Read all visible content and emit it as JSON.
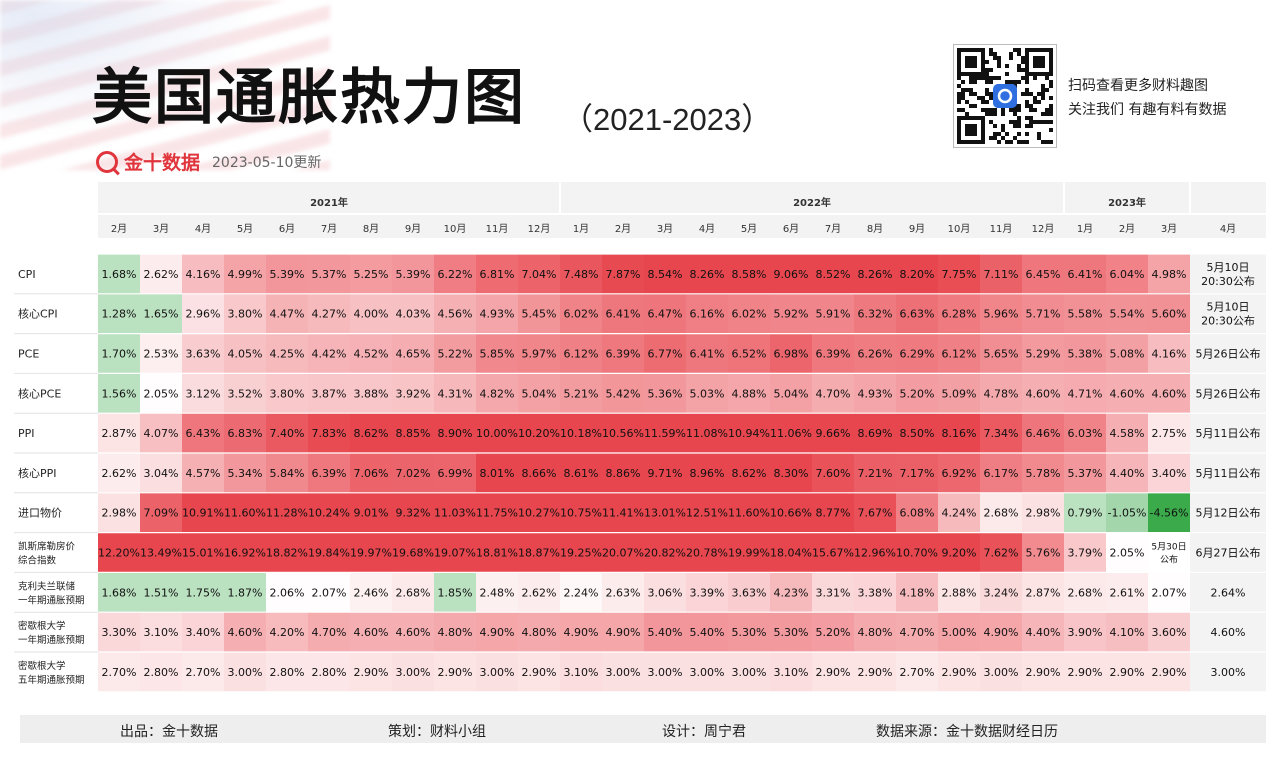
{
  "title": "美国通胀热力图",
  "subtitle": "（2021-2023）",
  "brand": {
    "name": "金十数据",
    "update": "2023-05-10更新",
    "logo": "jin10-q-logo-icon"
  },
  "qr": {
    "line1": "扫码查看更多财料趣图",
    "line2": "关注我们 有趣有料有数据",
    "icon": "qr-code-icon"
  },
  "footer": {
    "producer": "出品：金十数据",
    "planner": "策划：财料小组",
    "designer": "设计：周宁君",
    "source": "数据来源：金十数据财经日历"
  },
  "colors": {
    "positive": "#e8464e",
    "negative": "#2e9a3c",
    "accent": "#e0353d"
  },
  "chart_data": {
    "type": "heatmap",
    "title": "美国通胀热力图",
    "year_groups": [
      {
        "label": "2021年",
        "span": 11
      },
      {
        "label": "2022年",
        "span": 12
      },
      {
        "label": "2023年",
        "span": 3
      },
      {
        "label": "",
        "span": 1
      }
    ],
    "columns": [
      "2月",
      "3月",
      "4月",
      "5月",
      "6月",
      "7月",
      "8月",
      "9月",
      "10月",
      "11月",
      "12月",
      "1月",
      "2月",
      "3月",
      "4月",
      "5月",
      "6月",
      "7月",
      "8月",
      "9月",
      "10月",
      "11月",
      "12月",
      "1月",
      "2月",
      "3月",
      "4月"
    ],
    "rows": [
      {
        "label": [
          "CPI"
        ],
        "values": [
          1.68,
          2.62,
          4.16,
          4.99,
          5.39,
          5.37,
          5.25,
          5.39,
          6.22,
          6.81,
          7.04,
          7.48,
          7.87,
          8.54,
          8.26,
          8.58,
          9.06,
          8.52,
          8.26,
          8.2,
          7.75,
          7.11,
          6.45,
          6.41,
          6.04,
          4.98
        ],
        "cells": [
          "1.68%",
          "2.62%",
          "4.16%",
          "4.99%",
          "5.39%",
          "5.37%",
          "5.25%",
          "5.39%",
          "6.22%",
          "6.81%",
          "7.04%",
          "7.48%",
          "7.87%",
          "8.54%",
          "8.26%",
          "8.58%",
          "9.06%",
          "8.52%",
          "8.26%",
          "8.20%",
          "7.75%",
          "7.11%",
          "6.45%",
          "6.41%",
          "6.04%",
          "4.98%"
        ],
        "release": [
          "5月10日",
          "20:30公布"
        ]
      },
      {
        "label": [
          "核心CPI"
        ],
        "values": [
          1.28,
          1.65,
          2.96,
          3.8,
          4.47,
          4.27,
          4.0,
          4.03,
          4.56,
          4.93,
          5.45,
          6.02,
          6.41,
          6.47,
          6.16,
          6.02,
          5.92,
          5.91,
          6.32,
          6.63,
          6.28,
          5.96,
          5.71,
          5.58,
          5.54,
          5.6
        ],
        "cells": [
          "1.28%",
          "1.65%",
          "2.96%",
          "3.80%",
          "4.47%",
          "4.27%",
          "4.00%",
          "4.03%",
          "4.56%",
          "4.93%",
          "5.45%",
          "6.02%",
          "6.41%",
          "6.47%",
          "6.16%",
          "6.02%",
          "5.92%",
          "5.91%",
          "6.32%",
          "6.63%",
          "6.28%",
          "5.96%",
          "5.71%",
          "5.58%",
          "5.54%",
          "5.60%"
        ],
        "release": [
          "5月10日",
          "20:30公布"
        ]
      },
      {
        "label": [
          "PCE"
        ],
        "values": [
          1.7,
          2.53,
          3.63,
          4.05,
          4.25,
          4.42,
          4.52,
          4.65,
          5.22,
          5.85,
          5.97,
          6.12,
          6.39,
          6.77,
          6.41,
          6.52,
          6.98,
          6.39,
          6.26,
          6.29,
          6.12,
          5.65,
          5.29,
          5.38,
          5.08,
          4.16
        ],
        "cells": [
          "1.70%",
          "2.53%",
          "3.63%",
          "4.05%",
          "4.25%",
          "4.42%",
          "4.52%",
          "4.65%",
          "5.22%",
          "5.85%",
          "5.97%",
          "6.12%",
          "6.39%",
          "6.77%",
          "6.41%",
          "6.52%",
          "6.98%",
          "6.39%",
          "6.26%",
          "6.29%",
          "6.12%",
          "5.65%",
          "5.29%",
          "5.38%",
          "5.08%",
          "4.16%"
        ],
        "release": [
          "5月26日公布"
        ]
      },
      {
        "label": [
          "核心PCE"
        ],
        "values": [
          1.56,
          2.05,
          3.12,
          3.52,
          3.8,
          3.87,
          3.88,
          3.92,
          4.31,
          4.82,
          5.04,
          5.21,
          5.42,
          5.36,
          5.03,
          4.88,
          5.04,
          4.7,
          4.93,
          5.2,
          5.09,
          4.78,
          4.6,
          4.71,
          4.6,
          4.6
        ],
        "cells": [
          "1.56%",
          "2.05%",
          "3.12%",
          "3.52%",
          "3.80%",
          "3.87%",
          "3.88%",
          "3.92%",
          "4.31%",
          "4.82%",
          "5.04%",
          "5.21%",
          "5.42%",
          "5.36%",
          "5.03%",
          "4.88%",
          "5.04%",
          "4.70%",
          "4.93%",
          "5.20%",
          "5.09%",
          "4.78%",
          "4.60%",
          "4.71%",
          "4.60%",
          "4.60%"
        ],
        "release": [
          "5月26日公布"
        ]
      },
      {
        "label": [
          "PPI"
        ],
        "values": [
          2.87,
          4.07,
          6.43,
          6.83,
          7.4,
          7.83,
          8.62,
          8.85,
          8.9,
          10.0,
          10.2,
          10.18,
          10.56,
          11.59,
          11.08,
          10.94,
          11.06,
          9.66,
          8.69,
          8.5,
          8.16,
          7.34,
          6.46,
          6.03,
          4.58,
          2.75
        ],
        "cells": [
          "2.87%",
          "4.07%",
          "6.43%",
          "6.83%",
          "7.40%",
          "7.83%",
          "8.62%",
          "8.85%",
          "8.90%",
          "10.00%",
          "10.20%",
          "10.18%",
          "10.56%",
          "11.59%",
          "11.08%",
          "10.94%",
          "11.06%",
          "9.66%",
          "8.69%",
          "8.50%",
          "8.16%",
          "7.34%",
          "6.46%",
          "6.03%",
          "4.58%",
          "2.75%"
        ],
        "release": [
          "5月11日公布"
        ]
      },
      {
        "label": [
          "核心PPI"
        ],
        "values": [
          2.62,
          3.04,
          4.57,
          5.34,
          5.84,
          6.39,
          7.06,
          7.02,
          6.99,
          8.01,
          8.66,
          8.61,
          8.86,
          9.71,
          8.96,
          8.62,
          8.3,
          7.6,
          7.21,
          7.17,
          6.92,
          6.17,
          5.78,
          5.37,
          4.4,
          3.4
        ],
        "cells": [
          "2.62%",
          "3.04%",
          "4.57%",
          "5.34%",
          "5.84%",
          "6.39%",
          "7.06%",
          "7.02%",
          "6.99%",
          "8.01%",
          "8.66%",
          "8.61%",
          "8.86%",
          "9.71%",
          "8.96%",
          "8.62%",
          "8.30%",
          "7.60%",
          "7.21%",
          "7.17%",
          "6.92%",
          "6.17%",
          "5.78%",
          "5.37%",
          "4.40%",
          "3.40%"
        ],
        "release": [
          "5月11日公布"
        ]
      },
      {
        "label": [
          "进口物价"
        ],
        "values": [
          2.98,
          7.09,
          10.91,
          11.6,
          11.28,
          10.24,
          9.01,
          9.32,
          11.03,
          11.75,
          10.27,
          10.75,
          11.41,
          13.01,
          12.51,
          11.6,
          10.66,
          8.77,
          7.67,
          6.08,
          4.24,
          2.68,
          2.98,
          0.79,
          -1.05,
          -4.56
        ],
        "cells": [
          "2.98%",
          "7.09%",
          "10.91%",
          "11.60%",
          "11.28%",
          "10.24%",
          "9.01%",
          "9.32%",
          "11.03%",
          "11.75%",
          "10.27%",
          "10.75%",
          "11.41%",
          "13.01%",
          "12.51%",
          "11.60%",
          "10.66%",
          "8.77%",
          "7.67%",
          "6.08%",
          "4.24%",
          "2.68%",
          "2.98%",
          "0.79%",
          "-1.05%",
          "-4.56%"
        ],
        "release": [
          "5月12日公布"
        ]
      },
      {
        "label": [
          "凯斯席勒房价",
          "综合指数"
        ],
        "values": [
          12.2,
          13.49,
          15.01,
          16.92,
          18.82,
          19.84,
          19.97,
          19.68,
          19.07,
          18.81,
          18.87,
          19.25,
          20.07,
          20.82,
          20.78,
          19.99,
          18.04,
          15.67,
          12.96,
          10.7,
          9.2,
          7.62,
          5.76,
          3.79,
          2.05,
          null
        ],
        "cells": [
          "12.20%",
          "13.49%",
          "15.01%",
          "16.92%",
          "18.82%",
          "19.84%",
          "19.97%",
          "19.68%",
          "19.07%",
          "18.81%",
          "18.87%",
          "19.25%",
          "20.07%",
          "20.82%",
          "20.78%",
          "19.99%",
          "18.04%",
          "15.67%",
          "12.96%",
          "10.70%",
          "9.20%",
          "7.62%",
          "5.76%",
          "3.79%",
          "2.05%",
          "5月30日/公布"
        ],
        "release": [
          "6月27日公布"
        ]
      },
      {
        "label": [
          "克利夫兰联储",
          "一年期通胀预期"
        ],
        "values": [
          1.68,
          1.51,
          1.75,
          1.87,
          2.06,
          2.07,
          2.46,
          2.68,
          1.85,
          2.48,
          2.62,
          2.24,
          2.63,
          3.06,
          3.39,
          3.63,
          4.23,
          3.31,
          3.38,
          4.18,
          2.88,
          3.24,
          2.87,
          2.68,
          2.61,
          2.07
        ],
        "cells": [
          "1.68%",
          "1.51%",
          "1.75%",
          "1.87%",
          "2.06%",
          "2.07%",
          "2.46%",
          "2.68%",
          "1.85%",
          "2.48%",
          "2.62%",
          "2.24%",
          "2.63%",
          "3.06%",
          "3.39%",
          "3.63%",
          "4.23%",
          "3.31%",
          "3.38%",
          "4.18%",
          "2.88%",
          "3.24%",
          "2.87%",
          "2.68%",
          "2.61%",
          "2.07%"
        ],
        "release": [
          "2.64%"
        ]
      },
      {
        "label": [
          "密歇根大学",
          "一年期通胀预期"
        ],
        "values": [
          3.3,
          3.1,
          3.4,
          4.6,
          4.2,
          4.7,
          4.6,
          4.6,
          4.8,
          4.9,
          4.8,
          4.9,
          4.9,
          5.4,
          5.4,
          5.3,
          5.3,
          5.2,
          4.8,
          4.7,
          5.0,
          4.9,
          4.4,
          3.9,
          4.1,
          3.6
        ],
        "cells": [
          "3.30%",
          "3.10%",
          "3.40%",
          "4.60%",
          "4.20%",
          "4.70%",
          "4.60%",
          "4.60%",
          "4.80%",
          "4.90%",
          "4.80%",
          "4.90%",
          "4.90%",
          "5.40%",
          "5.40%",
          "5.30%",
          "5.30%",
          "5.20%",
          "4.80%",
          "4.70%",
          "5.00%",
          "4.90%",
          "4.40%",
          "3.90%",
          "4.10%",
          "3.60%"
        ],
        "release": [
          "4.60%"
        ]
      },
      {
        "label": [
          "密歇根大学",
          "五年期通胀预期"
        ],
        "values": [
          2.7,
          2.8,
          2.7,
          3.0,
          2.8,
          2.8,
          2.9,
          3.0,
          2.9,
          3.0,
          2.9,
          3.1,
          3.0,
          3.0,
          3.0,
          3.0,
          3.1,
          2.9,
          2.9,
          2.7,
          2.9,
          3.0,
          2.9,
          2.9,
          2.9,
          2.9
        ],
        "cells": [
          "2.70%",
          "2.80%",
          "2.70%",
          "3.00%",
          "2.80%",
          "2.80%",
          "2.90%",
          "3.00%",
          "2.90%",
          "3.00%",
          "2.90%",
          "3.10%",
          "3.00%",
          "3.00%",
          "3.00%",
          "3.00%",
          "3.10%",
          "2.90%",
          "2.90%",
          "2.70%",
          "2.90%",
          "3.00%",
          "2.90%",
          "2.90%",
          "2.90%",
          "2.90%"
        ],
        "release": [
          "3.00%"
        ]
      }
    ]
  }
}
